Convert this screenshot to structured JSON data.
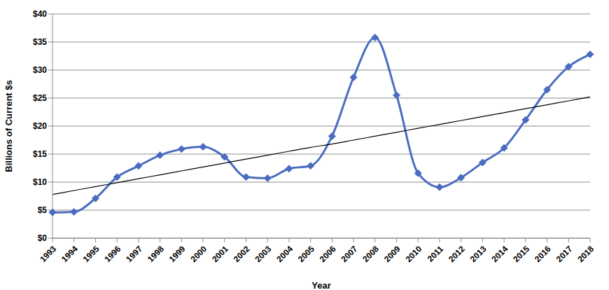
{
  "chart_data": {
    "type": "line",
    "x_label": "Year",
    "y_label": "Billions of Current $s",
    "categories": [
      "1993",
      "1994",
      "1995",
      "1996",
      "1997",
      "1998",
      "1999",
      "2000",
      "2001",
      "2002",
      "2003",
      "2004",
      "2005",
      "2006",
      "2007",
      "2008",
      "2009",
      "2010",
      "2011",
      "2012",
      "2013",
      "2014",
      "2015",
      "2016",
      "2017",
      "2018"
    ],
    "series": [
      {
        "type": "line",
        "color": "#4a6cc0",
        "marker": "diamond",
        "line_style": "solid",
        "values": [
          4.6,
          4.7,
          7.1,
          10.9,
          12.9,
          14.8,
          15.9,
          16.3,
          14.5,
          10.9,
          10.7,
          12.4,
          12.9,
          18.2,
          28.7,
          35.8,
          25.5,
          11.6,
          9.1,
          10.8,
          13.5,
          16.1,
          21.1,
          26.5,
          30.6,
          32.8
        ]
      },
      {
        "type": "line",
        "color": "#000000",
        "marker": "none",
        "line_style": "solid",
        "values": [
          7.8,
          8.5,
          9.2,
          9.9,
          10.6,
          11.3,
          12.0,
          12.7,
          13.4,
          14.1,
          14.8,
          15.5,
          16.2,
          16.8,
          17.5,
          18.2,
          18.9,
          19.6,
          20.3,
          21.0,
          21.7,
          22.4,
          23.1,
          23.8,
          24.5,
          25.2
        ]
      }
    ],
    "ylim": [
      0,
      40
    ],
    "yticks": [
      {
        "value": 0,
        "label": "$0"
      },
      {
        "value": 5,
        "label": "$5"
      },
      {
        "value": 10,
        "label": "$10"
      },
      {
        "value": 15,
        "label": "$15"
      },
      {
        "value": 20,
        "label": "$20"
      },
      {
        "value": 25,
        "label": "$25"
      },
      {
        "value": 30,
        "label": "$30"
      },
      {
        "value": 35,
        "label": "$35"
      },
      {
        "value": 40,
        "label": "$40"
      }
    ],
    "grid": true
  }
}
